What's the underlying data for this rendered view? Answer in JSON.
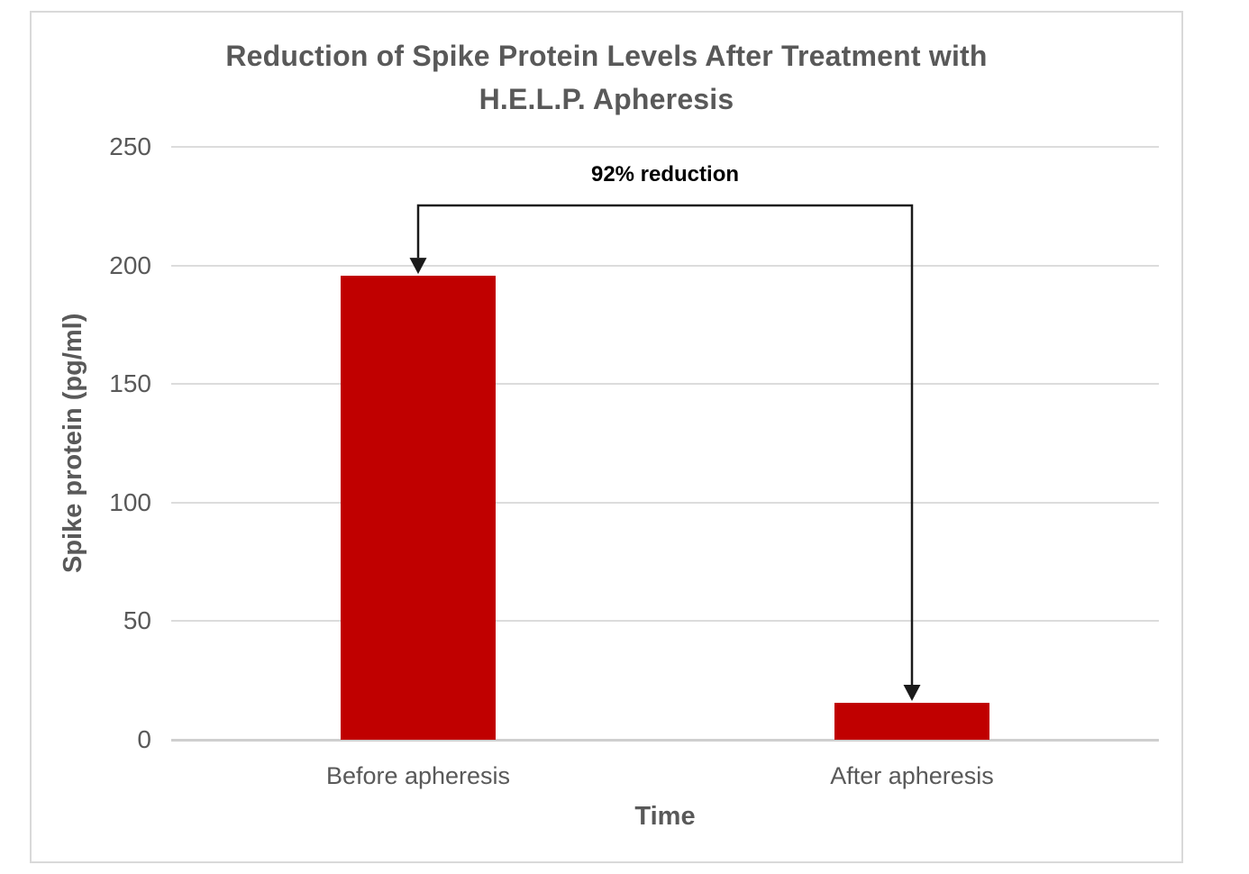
{
  "chart_data": {
    "type": "bar",
    "title": "Reduction of Spike Protein Levels After Treatment with H.E.L.P. Apheresis",
    "title_lines": [
      "Reduction of Spike Protein Levels After Treatment with",
      "H.E.L.P. Apheresis"
    ],
    "categories": [
      "Before apheresis",
      "After apheresis"
    ],
    "values": [
      195.6,
      15.6
    ],
    "xlabel": "Time",
    "ylabel": "Spike protein (pg/ml)",
    "ylim": [
      0,
      250
    ],
    "yticks": [
      0,
      50,
      100,
      150,
      200,
      250
    ],
    "grid": "horizontal",
    "legend": "none",
    "bar_color": "#C00000",
    "annotation": {
      "text": "92% reduction",
      "from_category": "Before apheresis",
      "to_category": "After apheresis",
      "shape": "bracket-arrow-down-to-both-bar-tops"
    }
  },
  "colors": {
    "bar": "#C00000",
    "annotation_arrow": "#1A1A1A",
    "annotation_text": "#000000",
    "axis_text": "#595959",
    "gridline": "#DCDCDC",
    "frame_border": "#D9D9D9",
    "background": "#FFFFFF"
  }
}
